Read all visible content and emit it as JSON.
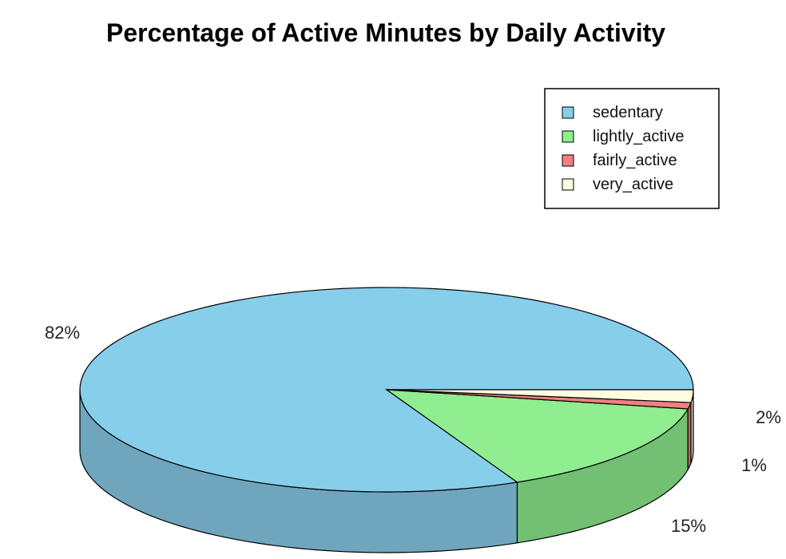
{
  "chart_data": {
    "type": "pie",
    "title": "Percentage of Active Minutes by Daily Activity",
    "slices": [
      {
        "name": "sedentary",
        "value": 82,
        "label": "82%",
        "color": "#87CEEB",
        "side_color": "#6FA6BE"
      },
      {
        "name": "lightly_active",
        "value": 15,
        "label": "15%",
        "color": "#90EE90",
        "side_color": "#73BF73"
      },
      {
        "name": "fairly_active",
        "value": 1,
        "label": "1%",
        "color": "#F08080",
        "side_color": "#C06666"
      },
      {
        "name": "very_active",
        "value": 2,
        "label": "2%",
        "color": "#FFFDE0",
        "side_color": "#CCCAB3"
      }
    ],
    "legend_position": "top-right",
    "three_d": true
  }
}
